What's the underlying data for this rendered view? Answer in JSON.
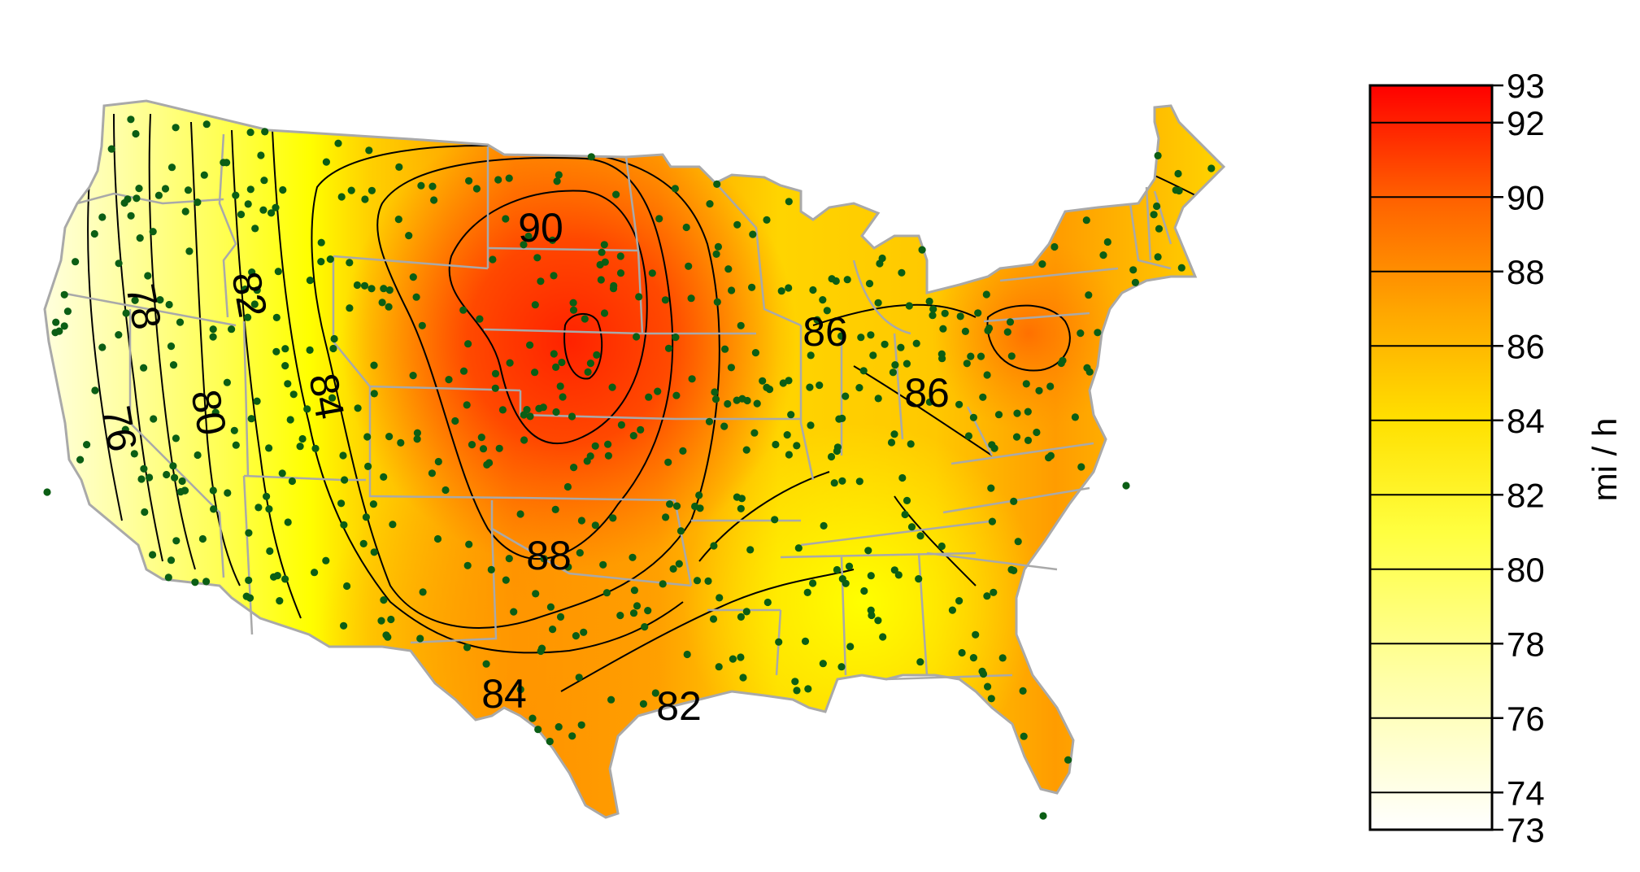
{
  "map": {
    "contour_labels": [
      {
        "text": "90",
        "value": 90
      },
      {
        "text": "88",
        "value": 88
      },
      {
        "text": "86",
        "value": 86
      },
      {
        "text": "86",
        "value": 86
      },
      {
        "text": "84",
        "value": 84
      },
      {
        "text": "84",
        "value": 84
      },
      {
        "text": "82",
        "value": 82
      },
      {
        "text": "82",
        "value": 82
      },
      {
        "text": "80",
        "value": 80
      },
      {
        "text": "78",
        "value": 78
      },
      {
        "text": "76",
        "value": 76
      }
    ],
    "station_color": "#0b5e14",
    "border_color": "#a9a9a9",
    "contour_color": "#000000"
  },
  "legend": {
    "title": "mi / h",
    "min": 73,
    "max": 93,
    "ticks": [
      "93",
      "92",
      "90",
      "88",
      "86",
      "84",
      "82",
      "80",
      "78",
      "76",
      "74",
      "73"
    ],
    "tick_values": [
      93,
      92,
      90,
      88,
      86,
      84,
      82,
      80,
      78,
      76,
      74,
      73
    ],
    "colormap": [
      "#ffffff",
      "#ffffa0",
      "#ffff00",
      "#ffb000",
      "#ff5a00",
      "#ff0000"
    ]
  }
}
